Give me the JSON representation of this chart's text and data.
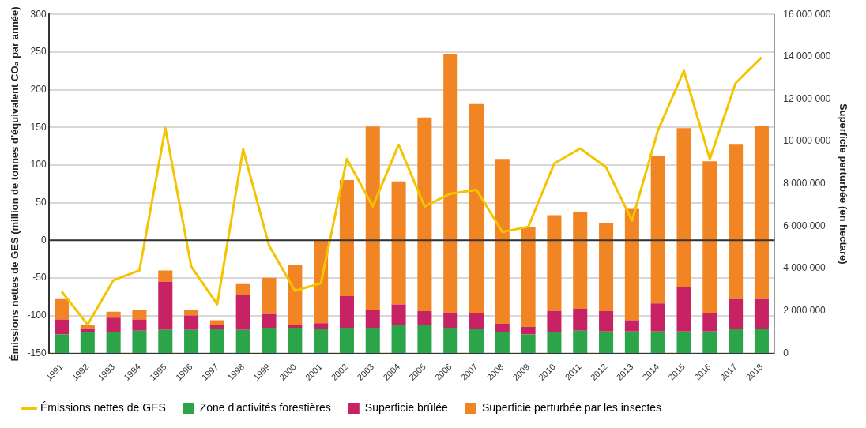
{
  "chart_data": {
    "type": "bar",
    "stacked": true,
    "ylabel": "Émissions nettes de GES (million de tonnes d'équivalent CO₂ par année)",
    "y2label": "Superficie perturbée (en hectare)",
    "categories": [
      "1991",
      "1992",
      "1993",
      "1994",
      "1995",
      "1996",
      "1997",
      "1998",
      "1999",
      "2000",
      "2001",
      "2002",
      "2003",
      "2004",
      "2005",
      "2006",
      "2007",
      "2008",
      "2009",
      "2010",
      "2011",
      "2012",
      "2013",
      "2014",
      "2015",
      "2016",
      "2017",
      "2018"
    ],
    "series": [
      {
        "name": "Émissions nettes de GES",
        "type": "line",
        "color": "#f5c400",
        "values": [
          -68,
          -112,
          -53,
          -40,
          149,
          -35,
          -85,
          121,
          -7,
          -67,
          -57,
          108,
          45,
          127,
          45,
          62,
          67,
          11,
          18,
          102,
          122,
          97,
          26,
          146,
          225,
          108,
          209,
          243
        ]
      },
      {
        "name": "Zone d'activités forestières",
        "axis": "y2",
        "color": "#2ca44a",
        "values": [
          890000,
          1000000,
          1000000,
          1070000,
          1100000,
          1100000,
          1170000,
          1100000,
          1210000,
          1210000,
          1170000,
          1210000,
          1210000,
          1350000,
          1350000,
          1210000,
          1140000,
          1000000,
          890000,
          1000000,
          1070000,
          1030000,
          1030000,
          1030000,
          1030000,
          1030000,
          1140000,
          1140000
        ]
      },
      {
        "name": "Superficie brûlée",
        "axis": "y2",
        "color": "#c72264",
        "values": [
          710000,
          180000,
          680000,
          530000,
          2280000,
          680000,
          180000,
          1670000,
          640000,
          140000,
          250000,
          1490000,
          850000,
          960000,
          640000,
          710000,
          750000,
          390000,
          360000,
          1000000,
          1030000,
          960000,
          530000,
          1320000,
          2100000,
          850000,
          1420000,
          1420000
        ]
      },
      {
        "name": "Superficie perturbée par les insectes",
        "axis": "y2",
        "color": "#f28523",
        "values": [
          960000,
          140000,
          280000,
          430000,
          530000,
          250000,
          210000,
          500000,
          1710000,
          2810000,
          3910000,
          5480000,
          8640000,
          5800000,
          9140000,
          12200000,
          9880000,
          7790000,
          4730000,
          4520000,
          4590000,
          4160000,
          5260000,
          6970000,
          7500000,
          7180000,
          7320000,
          8180000
        ]
      }
    ],
    "ylim": [
      -150,
      300
    ],
    "yticks": [
      -150,
      -100,
      -50,
      0,
      50,
      100,
      150,
      200,
      250,
      300
    ],
    "y2lim": [
      0,
      16000000
    ],
    "y2ticks": [
      {
        "value": 0,
        "label": "0"
      },
      {
        "value": 2000000,
        "label": "2 000 000"
      },
      {
        "value": 4000000,
        "label": "4 000 000"
      },
      {
        "value": 6000000,
        "label": "6 000 000"
      },
      {
        "value": 8000000,
        "label": "8 000 000"
      },
      {
        "value": 10000000,
        "label": "10 000 000"
      },
      {
        "value": 12000000,
        "label": "12 000 000"
      },
      {
        "value": 14000000,
        "label": "14 000 000"
      },
      {
        "value": 16000000,
        "label": "16 000 000"
      }
    ],
    "ref_lines": [
      {
        "axis": "y",
        "value": 0,
        "color": "#333333"
      }
    ],
    "grid": "y",
    "legend": "bottom left",
    "marker": "none"
  }
}
